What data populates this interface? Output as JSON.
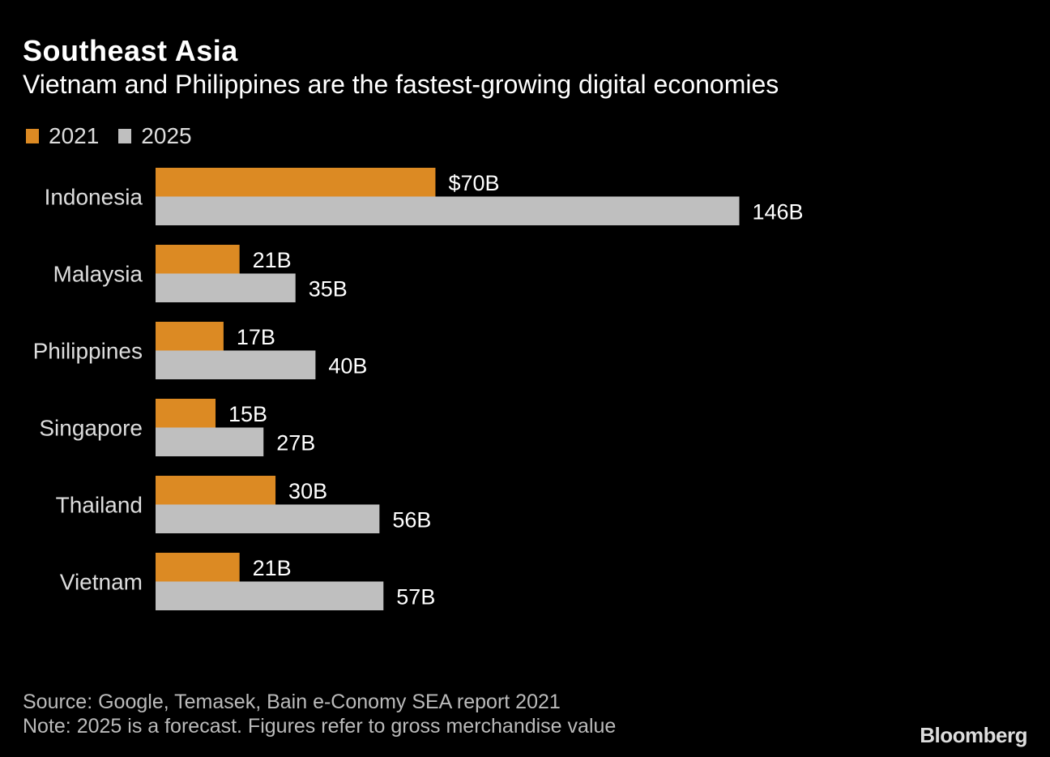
{
  "chart_data": {
    "type": "bar",
    "orientation": "horizontal",
    "title": "Southeast Asia",
    "subtitle": "Vietnam and Philippines are the fastest-growing digital economies",
    "categories": [
      "Indonesia",
      "Malaysia",
      "Philippines",
      "Singapore",
      "Thailand",
      "Vietnam"
    ],
    "series": [
      {
        "name": "2021",
        "color": "#DC8A23",
        "values": [
          70,
          21,
          17,
          15,
          30,
          21
        ],
        "labels": [
          "$70B",
          "21B",
          "17B",
          "15B",
          "30B",
          "21B"
        ]
      },
      {
        "name": "2025",
        "color": "#BFBFBF",
        "values": [
          146,
          35,
          40,
          27,
          56,
          57
        ],
        "labels": [
          "146B",
          "35B",
          "40B",
          "27B",
          "56B",
          "57B"
        ]
      }
    ],
    "unit": "billion USD",
    "legend": "top-left",
    "grid": false
  },
  "footer": {
    "source": "Source: Google, Temasek, Bain e-Conomy SEA report 2021",
    "note": "Note: 2025 is a forecast. Figures refer to gross merchandise value",
    "logo": "Bloomberg"
  }
}
